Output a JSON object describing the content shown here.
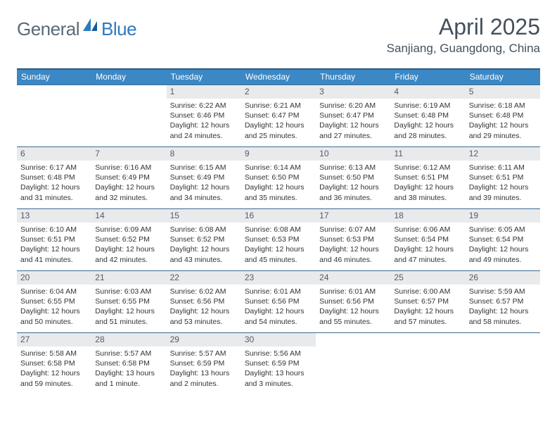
{
  "brand": {
    "part1": "General",
    "part2": "Blue"
  },
  "title": "April 2025",
  "location": "Sanjiang, Guangdong, China",
  "colors": {
    "header_bg": "#3b88c5",
    "header_border_top": "#2c5c84",
    "row_border": "#3b6a93",
    "daynum_bg": "#e9eaec",
    "brand_gray": "#5a6a78",
    "brand_blue": "#2b7bbf",
    "text": "#333333"
  },
  "weekdays": [
    "Sunday",
    "Monday",
    "Tuesday",
    "Wednesday",
    "Thursday",
    "Friday",
    "Saturday"
  ],
  "leading_blanks": 2,
  "days": [
    {
      "n": "1",
      "sunrise": "6:22 AM",
      "sunset": "6:46 PM",
      "daylight": "12 hours and 24 minutes."
    },
    {
      "n": "2",
      "sunrise": "6:21 AM",
      "sunset": "6:47 PM",
      "daylight": "12 hours and 25 minutes."
    },
    {
      "n": "3",
      "sunrise": "6:20 AM",
      "sunset": "6:47 PM",
      "daylight": "12 hours and 27 minutes."
    },
    {
      "n": "4",
      "sunrise": "6:19 AM",
      "sunset": "6:48 PM",
      "daylight": "12 hours and 28 minutes."
    },
    {
      "n": "5",
      "sunrise": "6:18 AM",
      "sunset": "6:48 PM",
      "daylight": "12 hours and 29 minutes."
    },
    {
      "n": "6",
      "sunrise": "6:17 AM",
      "sunset": "6:48 PM",
      "daylight": "12 hours and 31 minutes."
    },
    {
      "n": "7",
      "sunrise": "6:16 AM",
      "sunset": "6:49 PM",
      "daylight": "12 hours and 32 minutes."
    },
    {
      "n": "8",
      "sunrise": "6:15 AM",
      "sunset": "6:49 PM",
      "daylight": "12 hours and 34 minutes."
    },
    {
      "n": "9",
      "sunrise": "6:14 AM",
      "sunset": "6:50 PM",
      "daylight": "12 hours and 35 minutes."
    },
    {
      "n": "10",
      "sunrise": "6:13 AM",
      "sunset": "6:50 PM",
      "daylight": "12 hours and 36 minutes."
    },
    {
      "n": "11",
      "sunrise": "6:12 AM",
      "sunset": "6:51 PM",
      "daylight": "12 hours and 38 minutes."
    },
    {
      "n": "12",
      "sunrise": "6:11 AM",
      "sunset": "6:51 PM",
      "daylight": "12 hours and 39 minutes."
    },
    {
      "n": "13",
      "sunrise": "6:10 AM",
      "sunset": "6:51 PM",
      "daylight": "12 hours and 41 minutes."
    },
    {
      "n": "14",
      "sunrise": "6:09 AM",
      "sunset": "6:52 PM",
      "daylight": "12 hours and 42 minutes."
    },
    {
      "n": "15",
      "sunrise": "6:08 AM",
      "sunset": "6:52 PM",
      "daylight": "12 hours and 43 minutes."
    },
    {
      "n": "16",
      "sunrise": "6:08 AM",
      "sunset": "6:53 PM",
      "daylight": "12 hours and 45 minutes."
    },
    {
      "n": "17",
      "sunrise": "6:07 AM",
      "sunset": "6:53 PM",
      "daylight": "12 hours and 46 minutes."
    },
    {
      "n": "18",
      "sunrise": "6:06 AM",
      "sunset": "6:54 PM",
      "daylight": "12 hours and 47 minutes."
    },
    {
      "n": "19",
      "sunrise": "6:05 AM",
      "sunset": "6:54 PM",
      "daylight": "12 hours and 49 minutes."
    },
    {
      "n": "20",
      "sunrise": "6:04 AM",
      "sunset": "6:55 PM",
      "daylight": "12 hours and 50 minutes."
    },
    {
      "n": "21",
      "sunrise": "6:03 AM",
      "sunset": "6:55 PM",
      "daylight": "12 hours and 51 minutes."
    },
    {
      "n": "22",
      "sunrise": "6:02 AM",
      "sunset": "6:56 PM",
      "daylight": "12 hours and 53 minutes."
    },
    {
      "n": "23",
      "sunrise": "6:01 AM",
      "sunset": "6:56 PM",
      "daylight": "12 hours and 54 minutes."
    },
    {
      "n": "24",
      "sunrise": "6:01 AM",
      "sunset": "6:56 PM",
      "daylight": "12 hours and 55 minutes."
    },
    {
      "n": "25",
      "sunrise": "6:00 AM",
      "sunset": "6:57 PM",
      "daylight": "12 hours and 57 minutes."
    },
    {
      "n": "26",
      "sunrise": "5:59 AM",
      "sunset": "6:57 PM",
      "daylight": "12 hours and 58 minutes."
    },
    {
      "n": "27",
      "sunrise": "5:58 AM",
      "sunset": "6:58 PM",
      "daylight": "12 hours and 59 minutes."
    },
    {
      "n": "28",
      "sunrise": "5:57 AM",
      "sunset": "6:58 PM",
      "daylight": "13 hours and 1 minute."
    },
    {
      "n": "29",
      "sunrise": "5:57 AM",
      "sunset": "6:59 PM",
      "daylight": "13 hours and 2 minutes."
    },
    {
      "n": "30",
      "sunrise": "5:56 AM",
      "sunset": "6:59 PM",
      "daylight": "13 hours and 3 minutes."
    }
  ],
  "labels": {
    "sunrise": "Sunrise:",
    "sunset": "Sunset:",
    "daylight": "Daylight:"
  }
}
